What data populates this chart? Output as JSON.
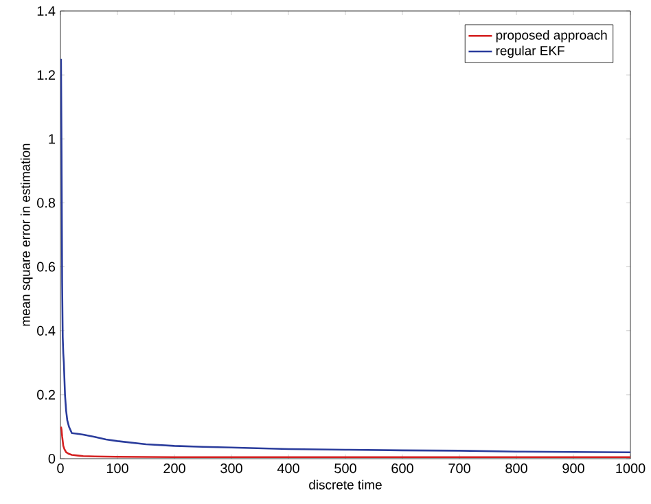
{
  "chart_data": {
    "type": "line",
    "xlabel": "discrete time",
    "ylabel": "mean square error in estimation",
    "xlim": [
      0,
      1000
    ],
    "ylim": [
      0,
      1.4
    ],
    "xticks": [
      0,
      100,
      200,
      300,
      400,
      500,
      600,
      700,
      800,
      900,
      1000
    ],
    "yticks": [
      0,
      0.2,
      0.4,
      0.6,
      0.8,
      1,
      1.2,
      1.4
    ],
    "legend": "top right",
    "grid": false,
    "line_style": "solid",
    "marker": "none",
    "series": [
      {
        "name": "proposed approach",
        "color": "#d42020",
        "x": [
          1,
          2,
          3,
          5,
          7,
          10,
          15,
          20,
          30,
          40,
          60,
          100,
          200,
          400,
          600,
          800,
          1000
        ],
        "values": [
          0.1,
          0.09,
          0.07,
          0.04,
          0.03,
          0.02,
          0.015,
          0.012,
          0.01,
          0.008,
          0.007,
          0.006,
          0.005,
          0.005,
          0.005,
          0.005,
          0.005
        ]
      },
      {
        "name": "regular EKF",
        "color": "#2a3c9c",
        "x": [
          1,
          2,
          3,
          4,
          5,
          6,
          8,
          10,
          12,
          15,
          20,
          30,
          40,
          60,
          80,
          100,
          150,
          200,
          250,
          300,
          400,
          500,
          600,
          700,
          800,
          900,
          1000
        ],
        "values": [
          1.25,
          0.95,
          0.55,
          0.38,
          0.33,
          0.3,
          0.2,
          0.15,
          0.12,
          0.1,
          0.08,
          0.078,
          0.075,
          0.068,
          0.06,
          0.055,
          0.045,
          0.04,
          0.037,
          0.035,
          0.03,
          0.028,
          0.026,
          0.025,
          0.022,
          0.021,
          0.02
        ]
      }
    ]
  }
}
